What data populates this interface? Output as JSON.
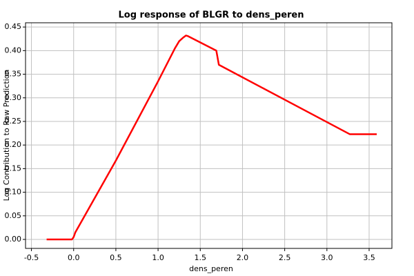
{
  "chart_data": {
    "type": "line",
    "title": "Log response of BLGR to dens_peren",
    "x_label": "dens_peren",
    "y_label": "Log Contribution to Raw Prediction",
    "x": [
      -0.32,
      -0.02,
      0.0,
      0.02,
      0.5,
      1.0,
      1.2,
      1.25,
      1.3,
      1.33,
      1.35,
      1.69,
      1.72,
      3.27,
      3.59
    ],
    "values": [
      0.0,
      0.0,
      0.005,
      0.015,
      0.167,
      0.335,
      0.405,
      0.42,
      0.428,
      0.432,
      0.431,
      0.4,
      0.37,
      0.223,
      0.223
    ],
    "color": "#ff0000",
    "xlim": [
      -0.57,
      3.77
    ],
    "xticks": [
      -0.5,
      {
        "value": 0,
        "label": "0.0"
      },
      0.5,
      {
        "value": 1,
        "label": "1.0"
      },
      1.5,
      {
        "value": 2,
        "label": "2.0"
      },
      2.5,
      {
        "value": 3,
        "label": "3.0"
      },
      3.5
    ],
    "ylim": [
      -0.019,
      0.459
    ],
    "yticks": [
      {
        "value": 0,
        "label": "0.00"
      },
      0.05,
      {
        "value": 0.1,
        "label": "0.10"
      },
      0.15,
      {
        "value": 0.2,
        "label": "0.20"
      },
      0.25,
      {
        "value": 0.3,
        "label": "0.30"
      },
      0.35,
      {
        "value": 0.4,
        "label": "0.40"
      },
      0.45
    ],
    "grid": true
  }
}
